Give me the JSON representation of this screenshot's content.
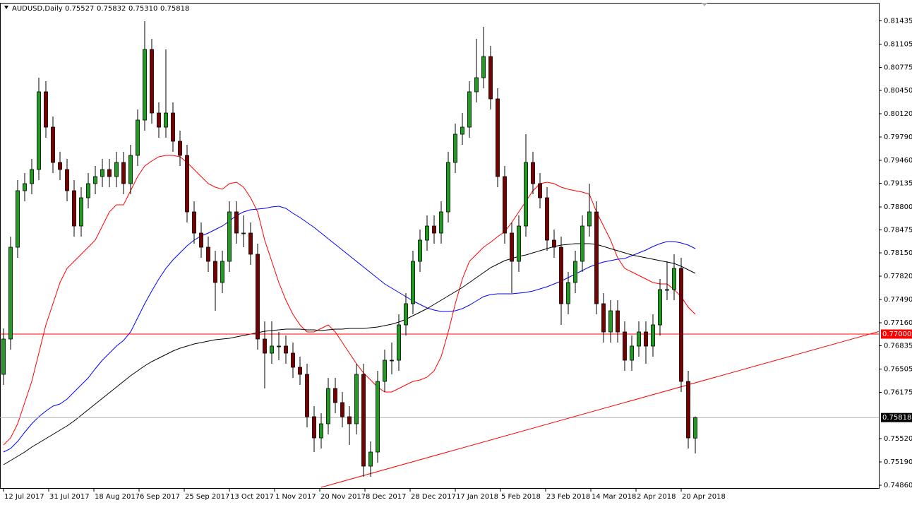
{
  "chart_data": {
    "type": "candlestick",
    "title": "AUDUSD,Daily",
    "last_bar_value_labels": [
      "0.75527",
      "0.75832",
      "0.75310",
      "0.75818"
    ],
    "xlim": [
      -0.5,
      124
    ],
    "ylim": [
      0.7482,
      0.8169
    ],
    "up_color": "#1e9e1e",
    "down_color": "#7a0000",
    "xticks": [
      {
        "value": 0,
        "label": "12 Jul 2017"
      },
      {
        "value": 6.4,
        "label": "31 Jul 2017"
      },
      {
        "value": 12.8,
        "label": "18 Aug 2017"
      },
      {
        "value": 19.2,
        "label": "6 Sep 2017"
      },
      {
        "value": 25.6,
        "label": "25 Sep 2017"
      },
      {
        "value": 32,
        "label": "13 Oct 2017"
      },
      {
        "value": 38.4,
        "label": "1 Nov 2017"
      },
      {
        "value": 44.8,
        "label": "20 Nov 2017"
      },
      {
        "value": 51.2,
        "label": "8 Dec 2017"
      },
      {
        "value": 57.6,
        "label": "28 Dec 2017"
      },
      {
        "value": 64,
        "label": "17 Jan 2018"
      },
      {
        "value": 70.4,
        "label": "5 Feb 2018"
      },
      {
        "value": 76.8,
        "label": "23 Feb 2018"
      },
      {
        "value": 83.2,
        "label": "14 Mar 2018"
      },
      {
        "value": 89.6,
        "label": "2 Apr 2018"
      },
      {
        "value": 96,
        "label": "20 Apr 2018"
      }
    ],
    "yticks": [
      0.81435,
      0.81105,
      0.80775,
      {
        "value": 0.8045,
        "label": "0.80450"
      },
      {
        "value": 0.8012,
        "label": "0.80120"
      },
      {
        "value": 0.7979,
        "label": "0.79790"
      },
      {
        "value": 0.7946,
        "label": "0.79460"
      },
      0.79135,
      {
        "value": 0.788,
        "label": "0.78800"
      },
      0.78475,
      {
        "value": 0.7815,
        "label": "0.78150"
      },
      {
        "value": 0.7782,
        "label": "0.77820"
      },
      {
        "value": 0.7749,
        "label": "0.77490"
      },
      {
        "value": 0.7716,
        "label": "0.77160"
      },
      0.76835,
      0.76505,
      0.76175,
      {
        "value": 0.7552,
        "label": "0.75520"
      },
      {
        "value": 0.7519,
        "label": "0.75190"
      },
      {
        "value": 0.7486,
        "label": "0.74860"
      }
    ],
    "hline": {
      "value": 0.77,
      "label": "0.77000",
      "color": "#ff0000"
    },
    "current_price": {
      "value": 0.75818,
      "label": "0.75818",
      "color": "#b0b0b0"
    },
    "trendline": {
      "color": "#ff0000",
      "x": [
        45,
        124.5
      ],
      "values": [
        0.7483,
        0.7705
      ]
    },
    "ohlc": [
      [
        0.7643,
        0.7708,
        0.7628,
        0.7693
      ],
      [
        0.7693,
        0.7838,
        0.7678,
        0.7823
      ],
      [
        0.7823,
        0.7918,
        0.7808,
        0.7903
      ],
      [
        0.7903,
        0.7928,
        0.7888,
        0.7913
      ],
      [
        0.7913,
        0.7948,
        0.7898,
        0.7933
      ],
      [
        0.7933,
        0.8063,
        0.7918,
        0.8043
      ],
      [
        0.8043,
        0.8058,
        0.7978,
        0.7993
      ],
      [
        0.7993,
        0.8008,
        0.7928,
        0.7943
      ],
      [
        0.7943,
        0.7958,
        0.7918,
        0.7933
      ],
      [
        0.7933,
        0.7948,
        0.7888,
        0.7903
      ],
      [
        0.7903,
        0.7918,
        0.7838,
        0.7853
      ],
      [
        0.7853,
        0.7908,
        0.7838,
        0.7893
      ],
      [
        0.7893,
        0.7928,
        0.7878,
        0.7913
      ],
      [
        0.7913,
        0.7938,
        0.7898,
        0.7923
      ],
      [
        0.7923,
        0.7948,
        0.7908,
        0.7933
      ],
      [
        0.7933,
        0.7948,
        0.7908,
        0.7923
      ],
      [
        0.7923,
        0.7958,
        0.7908,
        0.7943
      ],
      [
        0.7943,
        0.7958,
        0.7898,
        0.7913
      ],
      [
        0.7913,
        0.7968,
        0.7898,
        0.7953
      ],
      [
        0.7953,
        0.8018,
        0.7938,
        0.8003
      ],
      [
        0.8003,
        0.8143,
        0.7988,
        0.8103
      ],
      [
        0.8103,
        0.8118,
        0.7998,
        0.8013
      ],
      [
        0.8013,
        0.8028,
        0.7978,
        0.7993
      ],
      [
        0.7993,
        0.8103,
        0.7978,
        0.8013
      ],
      [
        0.8013,
        0.8028,
        0.7958,
        0.7973
      ],
      [
        0.7973,
        0.7988,
        0.7938,
        0.7953
      ],
      [
        0.7953,
        0.7968,
        0.7858,
        0.7873
      ],
      [
        0.7873,
        0.7888,
        0.7828,
        0.7843
      ],
      [
        0.7843,
        0.7858,
        0.7808,
        0.7823
      ],
      [
        0.7823,
        0.7838,
        0.7788,
        0.7803
      ],
      [
        0.7803,
        0.7818,
        0.7733,
        0.7773
      ],
      [
        0.7773,
        0.7818,
        0.7758,
        0.7803
      ],
      [
        0.7803,
        0.7888,
        0.7788,
        0.7873
      ],
      [
        0.7873,
        0.7888,
        0.7828,
        0.7843
      ],
      [
        0.7843,
        0.7868,
        0.7823,
        0.7843
      ],
      [
        0.7843,
        0.7858,
        0.7798,
        0.7813
      ],
      [
        0.7813,
        0.7828,
        0.7678,
        0.7693
      ],
      [
        0.7693,
        0.7718,
        0.7623,
        0.7673
      ],
      [
        0.7673,
        0.7718,
        0.7658,
        0.7683
      ],
      [
        0.7683,
        0.7703,
        0.7663,
        0.7683
      ],
      [
        0.7683,
        0.7698,
        0.7658,
        0.7673
      ],
      [
        0.7673,
        0.7688,
        0.7638,
        0.7653
      ],
      [
        0.7653,
        0.7668,
        0.7628,
        0.7643
      ],
      [
        0.7643,
        0.7658,
        0.7568,
        0.7583
      ],
      [
        0.7583,
        0.7598,
        0.7533,
        0.7553
      ],
      [
        0.7553,
        0.7588,
        0.7538,
        0.7573
      ],
      [
        0.7573,
        0.7638,
        0.7558,
        0.7623
      ],
      [
        0.7623,
        0.7638,
        0.7588,
        0.7603
      ],
      [
        0.7603,
        0.7618,
        0.7568,
        0.7583
      ],
      [
        0.7583,
        0.7598,
        0.7543,
        0.7573
      ],
      [
        0.7573,
        0.7658,
        0.7558,
        0.7643
      ],
      [
        0.7643,
        0.7658,
        0.7498,
        0.7513
      ],
      [
        0.7513,
        0.7548,
        0.7498,
        0.7533
      ],
      [
        0.7533,
        0.7648,
        0.7518,
        0.7633
      ],
      [
        0.7633,
        0.7678,
        0.7618,
        0.7663
      ],
      [
        0.7663,
        0.7688,
        0.7643,
        0.7663
      ],
      [
        0.7663,
        0.7728,
        0.7648,
        0.7713
      ],
      [
        0.7713,
        0.7758,
        0.7698,
        0.7743
      ],
      [
        0.7743,
        0.7818,
        0.7728,
        0.7803
      ],
      [
        0.7803,
        0.7848,
        0.7788,
        0.7833
      ],
      [
        0.7833,
        0.7868,
        0.7818,
        0.7853
      ],
      [
        0.7853,
        0.7868,
        0.7828,
        0.7843
      ],
      [
        0.7843,
        0.7888,
        0.7828,
        0.7873
      ],
      [
        0.7873,
        0.7958,
        0.7858,
        0.7943
      ],
      [
        0.7943,
        0.7998,
        0.7928,
        0.7983
      ],
      [
        0.7983,
        0.8013,
        0.7968,
        0.7993
      ],
      [
        0.7993,
        0.8058,
        0.7978,
        0.8043
      ],
      [
        0.8043,
        0.8118,
        0.8028,
        0.8063
      ],
      [
        0.8063,
        0.8135,
        0.8048,
        0.8093
      ],
      [
        0.8093,
        0.8108,
        0.8018,
        0.8033
      ],
      [
        0.8033,
        0.8048,
        0.7908,
        0.7923
      ],
      [
        0.7923,
        0.7938,
        0.7828,
        0.7843
      ],
      [
        0.7843,
        0.7858,
        0.7758,
        0.7803
      ],
      [
        0.7803,
        0.7868,
        0.7788,
        0.7853
      ],
      [
        0.7853,
        0.7983,
        0.7838,
        0.7943
      ],
      [
        0.7943,
        0.7958,
        0.7898,
        0.7913
      ],
      [
        0.7913,
        0.7928,
        0.7878,
        0.7893
      ],
      [
        0.7893,
        0.7908,
        0.7818,
        0.7833
      ],
      [
        0.7833,
        0.7848,
        0.7808,
        0.7823
      ],
      [
        0.7823,
        0.7838,
        0.7713,
        0.7743
      ],
      [
        0.7743,
        0.7788,
        0.7728,
        0.7773
      ],
      [
        0.7773,
        0.7818,
        0.7758,
        0.7803
      ],
      [
        0.7803,
        0.7868,
        0.7788,
        0.7853
      ],
      [
        0.7853,
        0.7913,
        0.7838,
        0.7873
      ],
      [
        0.7873,
        0.7888,
        0.7728,
        0.7743
      ],
      [
        0.7743,
        0.7758,
        0.7688,
        0.7703
      ],
      [
        0.7703,
        0.7748,
        0.7688,
        0.7733
      ],
      [
        0.7733,
        0.7748,
        0.7688,
        0.7703
      ],
      [
        0.7703,
        0.7718,
        0.7648,
        0.7663
      ],
      [
        0.7663,
        0.7698,
        0.7648,
        0.7683
      ],
      [
        0.7683,
        0.7718,
        0.7668,
        0.7703
      ],
      [
        0.7703,
        0.7718,
        0.7658,
        0.7683
      ],
      [
        0.7683,
        0.7728,
        0.7668,
        0.7713
      ],
      [
        0.7713,
        0.7778,
        0.7698,
        0.7763
      ],
      [
        0.7763,
        0.7803,
        0.7748,
        0.7763
      ],
      [
        0.7763,
        0.7813,
        0.7748,
        0.7793
      ],
      [
        0.7793,
        0.7808,
        0.7618,
        0.7633
      ],
      [
        0.7633,
        0.7648,
        0.7538,
        0.7553
      ],
      [
        0.75527,
        0.75832,
        0.7531,
        0.75818
      ]
    ],
    "series": [
      {
        "color": "#ff0000",
        "values": [
          0.7543,
          0.7553,
          0.7573,
          0.7603,
          0.7633,
          0.7673,
          0.7713,
          0.7743,
          0.7773,
          0.7793,
          0.7803,
          0.7813,
          0.7823,
          0.7833,
          0.7853,
          0.7873,
          0.7883,
          0.7883,
          0.7903,
          0.7923,
          0.7938,
          0.7945,
          0.7951,
          0.7953,
          0.7953,
          0.7951,
          0.7943,
          0.7933,
          0.7923,
          0.7913,
          0.7908,
          0.7905,
          0.7913,
          0.7915,
          0.7908,
          0.7893,
          0.7873,
          0.7833,
          0.7803,
          0.7773,
          0.7748,
          0.7728,
          0.7713,
          0.7703,
          0.7703,
          0.7708,
          0.7713,
          0.7703,
          0.7688,
          0.7673,
          0.7658,
          0.7645,
          0.7635,
          0.7625,
          0.7618,
          0.7618,
          0.7623,
          0.7628,
          0.7633,
          0.7635,
          0.7639,
          0.7648,
          0.7668,
          0.7703,
          0.7743,
          0.7778,
          0.7803,
          0.7813,
          0.7823,
          0.783,
          0.7838,
          0.7845,
          0.7858,
          0.7873,
          0.7888,
          0.7903,
          0.7913,
          0.7915,
          0.7913,
          0.7908,
          0.7905,
          0.7903,
          0.7901,
          0.7898,
          0.7873,
          0.7853,
          0.7833,
          0.7808,
          0.7793,
          0.7788,
          0.7783,
          0.7778,
          0.7773,
          0.7771,
          0.7771,
          0.7763,
          0.7753,
          0.7738,
          0.7728
        ]
      },
      {
        "color": "#0000ff",
        "values": [
          0.7533,
          0.7538,
          0.7548,
          0.7561,
          0.7573,
          0.7583,
          0.7591,
          0.7598,
          0.7601,
          0.7608,
          0.7618,
          0.7628,
          0.7638,
          0.7651,
          0.7663,
          0.7673,
          0.7683,
          0.7691,
          0.7703,
          0.7723,
          0.7743,
          0.7761,
          0.7778,
          0.7793,
          0.7805,
          0.7815,
          0.7825,
          0.7833,
          0.7839,
          0.7843,
          0.7848,
          0.7853,
          0.786,
          0.7868,
          0.7873,
          0.7876,
          0.7877,
          0.7878,
          0.788,
          0.7881,
          0.7878,
          0.7871,
          0.7865,
          0.7858,
          0.7851,
          0.7843,
          0.7835,
          0.7827,
          0.7819,
          0.7811,
          0.7803,
          0.7795,
          0.7787,
          0.7779,
          0.7771,
          0.7765,
          0.7759,
          0.7753,
          0.7747,
          0.7742,
          0.7737,
          0.7734,
          0.7732,
          0.7732,
          0.7733,
          0.7736,
          0.7741,
          0.7747,
          0.7753,
          0.7756,
          0.7757,
          0.7757,
          0.7757,
          0.7758,
          0.7759,
          0.7761,
          0.7764,
          0.7767,
          0.7771,
          0.7775,
          0.778,
          0.7785,
          0.779,
          0.7795,
          0.7799,
          0.7802,
          0.7804,
          0.7806,
          0.7807,
          0.7811,
          0.7815,
          0.7819,
          0.7824,
          0.7828,
          0.7831,
          0.7831,
          0.7829,
          0.7826,
          0.7821
        ]
      },
      {
        "color": "#000000",
        "values": [
          0.7515,
          0.7521,
          0.7527,
          0.7533,
          0.754,
          0.7546,
          0.7552,
          0.7558,
          0.7564,
          0.757,
          0.7577,
          0.7585,
          0.7593,
          0.7601,
          0.7609,
          0.7617,
          0.7625,
          0.7633,
          0.7641,
          0.7648,
          0.7655,
          0.7661,
          0.7666,
          0.7671,
          0.7676,
          0.768,
          0.7683,
          0.7686,
          0.7688,
          0.769,
          0.7692,
          0.7693,
          0.7694,
          0.7696,
          0.7698,
          0.77,
          0.7702,
          0.7704,
          0.7705,
          0.7706,
          0.7707,
          0.7707,
          0.7707,
          0.7706,
          0.7706,
          0.7705,
          0.7706,
          0.7707,
          0.7707,
          0.7708,
          0.7708,
          0.7708,
          0.7709,
          0.771,
          0.7712,
          0.7714,
          0.7717,
          0.7721,
          0.7726,
          0.7731,
          0.7736,
          0.7742,
          0.7748,
          0.7754,
          0.776,
          0.7766,
          0.7773,
          0.778,
          0.7787,
          0.7794,
          0.7799,
          0.7804,
          0.7807,
          0.781,
          0.7812,
          0.7815,
          0.7818,
          0.7821,
          0.7824,
          0.7826,
          0.7827,
          0.7828,
          0.7828,
          0.7828,
          0.7827,
          0.7824,
          0.7821,
          0.7818,
          0.7815,
          0.7812,
          0.781,
          0.7808,
          0.7806,
          0.7804,
          0.7802,
          0.78,
          0.7796,
          0.7791,
          0.7786
        ]
      }
    ]
  }
}
